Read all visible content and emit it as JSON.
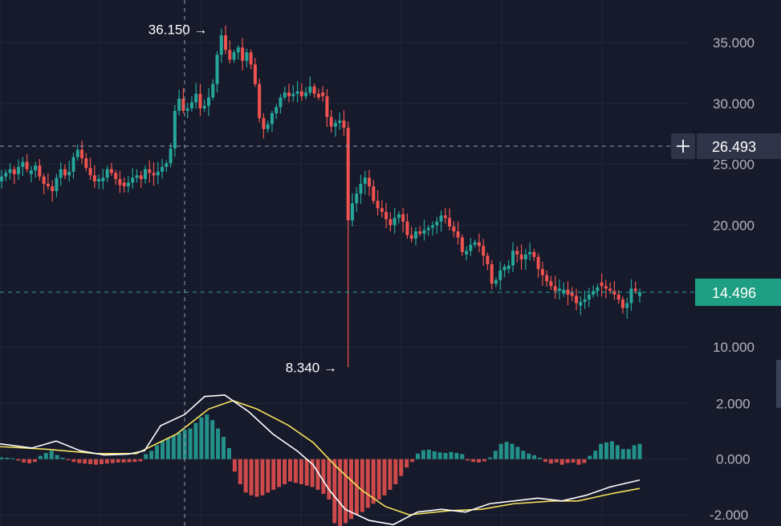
{
  "colors": {
    "background": "#161a2b",
    "grid": "#232839",
    "up": "#26a69a",
    "down": "#ef5350",
    "macd_line": "#ffffff",
    "signal_line": "#f5e05c",
    "axis_text": "#b2b5be",
    "last_price_tag": "#1e9e82",
    "crosshair_tag": "#2f3448"
  },
  "price_axis": {
    "ylim": [
      7.5,
      38.5
    ],
    "ticks": [
      {
        "value": 35,
        "label": "35.000"
      },
      {
        "value": 30,
        "label": "30.000"
      },
      {
        "value": 25,
        "label": "25.000"
      },
      {
        "value": 20,
        "label": "20.000"
      },
      {
        "value": 10,
        "label": "10.000"
      }
    ]
  },
  "macd_axis": {
    "ylim": [
      -2.4,
      2.5
    ],
    "ticks": [
      {
        "value": 2,
        "label": "2.000"
      },
      {
        "value": 0,
        "label": "0.000"
      },
      {
        "value": -2,
        "label": "-2.000"
      }
    ]
  },
  "markers": {
    "high": {
      "value": 36.15,
      "label": "36.150 →"
    },
    "low": {
      "value": 8.34,
      "label": "8.340 →"
    },
    "crosshair_price": {
      "value": 26.493,
      "label": "26.493",
      "icon": "plus-icon"
    },
    "last_price": {
      "value": 14.496,
      "label": "14.496"
    }
  },
  "chart_data": {
    "type": "candlestick",
    "candles_close": [
      24.0,
      24.3,
      24.6,
      24.2,
      24.8,
      25.2,
      24.6,
      24.5,
      24.9,
      24.0,
      23.4,
      23.2,
      22.8,
      23.9,
      24.6,
      24.1,
      24.4,
      25.6,
      26.2,
      25.5,
      24.7,
      24.1,
      23.6,
      23.8,
      23.9,
      24.6,
      24.3,
      23.8,
      23.3,
      23.2,
      23.5,
      23.9,
      24.1,
      23.8,
      24.6,
      24.3,
      24.1,
      24.4,
      24.8,
      25.1,
      26.3,
      29.4,
      30.4,
      29.4,
      29.6,
      30.1,
      30.8,
      29.6,
      29.8,
      30.5,
      31.6,
      34.0,
      35.6,
      34.4,
      33.6,
      34.2,
      34.6,
      33.5,
      34.2,
      33.2,
      31.6,
      28.8,
      27.9,
      28.3,
      29.2,
      29.7,
      30.5,
      30.9,
      30.6,
      30.8,
      31.0,
      30.6,
      30.9,
      31.4,
      30.8,
      30.5,
      30.6,
      28.9,
      28.1,
      28.4,
      28.6,
      28.0,
      20.4,
      21.8,
      22.6,
      23.4,
      23.9,
      23.2,
      22.0,
      21.4,
      21.1,
      20.5,
      20.0,
      20.6,
      20.9,
      20.3,
      19.2,
      18.9,
      19.5,
      19.3,
      19.6,
      19.8,
      20.0,
      20.3,
      20.8,
      20.6,
      19.9,
      19.5,
      19.0,
      17.8,
      17.9,
      18.4,
      18.6,
      18.3,
      17.5,
      16.8,
      15.2,
      15.5,
      16.3,
      16.6,
      16.7,
      17.9,
      17.6,
      17.2,
      17.6,
      17.8,
      17.4,
      16.4,
      15.9,
      15.4,
      15.0,
      14.6,
      14.8,
      14.7,
      14.3,
      14.2,
      13.6,
      13.7,
      13.9,
      14.3,
      14.6,
      14.9,
      15.0,
      14.8,
      14.6,
      14.3,
      13.9,
      13.2,
      13.6,
      14.8,
      14.6,
      14.496
    ],
    "macd_histogram": [
      0.06,
      0.05,
      0.03,
      -0.05,
      -0.12,
      -0.15,
      -0.1,
      0.12,
      0.22,
      0.3,
      0.15,
      0.05,
      -0.04,
      -0.1,
      -0.14,
      -0.16,
      -0.18,
      -0.2,
      -0.18,
      -0.16,
      -0.14,
      -0.12,
      -0.12,
      -0.11,
      -0.1,
      -0.08,
      0.18,
      0.3,
      0.5,
      0.65,
      0.75,
      0.85,
      0.95,
      1.05,
      1.1,
      1.3,
      1.5,
      1.6,
      1.4,
      1.1,
      0.8,
      0.4,
      -0.45,
      -0.9,
      -1.2,
      -1.3,
      -1.35,
      -1.3,
      -1.2,
      -1.1,
      -1.0,
      -0.9,
      -0.8,
      -0.85,
      -0.9,
      -0.95,
      -1.0,
      -1.1,
      -1.25,
      -1.45,
      -2.3,
      -2.45,
      -2.3,
      -2.15,
      -2.0,
      -1.9,
      -1.75,
      -1.6,
      -1.45,
      -1.3,
      -1.1,
      -0.9,
      -0.6,
      -0.3,
      -0.1,
      0.2,
      0.32,
      0.34,
      0.28,
      0.24,
      0.22,
      0.26,
      0.22,
      0.18,
      -0.05,
      -0.1,
      -0.12,
      -0.08,
      0.06,
      0.3,
      0.55,
      0.62,
      0.55,
      0.44,
      0.3,
      0.2,
      0.14,
      0.05,
      -0.1,
      -0.16,
      -0.12,
      -0.2,
      -0.14,
      -0.12,
      -0.2,
      -0.14,
      0.12,
      0.3,
      0.55,
      0.6,
      0.64,
      0.5,
      0.36,
      0.36,
      0.5,
      0.55
    ],
    "macd_line": [
      [
        0,
        0.55
      ],
      [
        40,
        0.4
      ],
      [
        70,
        0.65
      ],
      [
        100,
        0.3
      ],
      [
        130,
        0.15
      ],
      [
        160,
        0.18
      ],
      [
        180,
        0.3
      ],
      [
        200,
        1.2
      ],
      [
        230,
        1.6
      ],
      [
        255,
        2.25
      ],
      [
        280,
        2.3
      ],
      [
        310,
        1.7
      ],
      [
        340,
        0.9
      ],
      [
        370,
        0.3
      ],
      [
        390,
        -0.2
      ],
      [
        410,
        -1.1
      ],
      [
        430,
        -1.8
      ],
      [
        460,
        -2.2
      ],
      [
        490,
        -2.35
      ],
      [
        520,
        -1.9
      ],
      [
        550,
        -1.8
      ],
      [
        580,
        -1.9
      ],
      [
        610,
        -1.6
      ],
      [
        640,
        -1.5
      ],
      [
        670,
        -1.4
      ],
      [
        700,
        -1.5
      ],
      [
        730,
        -1.3
      ],
      [
        760,
        -1.0
      ],
      [
        797,
        -0.75
      ]
    ],
    "signal_line": [
      [
        0,
        0.45
      ],
      [
        60,
        0.35
      ],
      [
        120,
        0.2
      ],
      [
        170,
        0.2
      ],
      [
        220,
        0.9
      ],
      [
        260,
        1.8
      ],
      [
        290,
        2.1
      ],
      [
        320,
        1.8
      ],
      [
        360,
        1.2
      ],
      [
        390,
        0.6
      ],
      [
        420,
        -0.3
      ],
      [
        450,
        -1.1
      ],
      [
        480,
        -1.7
      ],
      [
        510,
        -2.0
      ],
      [
        560,
        -1.85
      ],
      [
        600,
        -1.8
      ],
      [
        640,
        -1.6
      ],
      [
        690,
        -1.5
      ],
      [
        720,
        -1.5
      ],
      [
        760,
        -1.25
      ],
      [
        797,
        -1.05
      ]
    ]
  }
}
